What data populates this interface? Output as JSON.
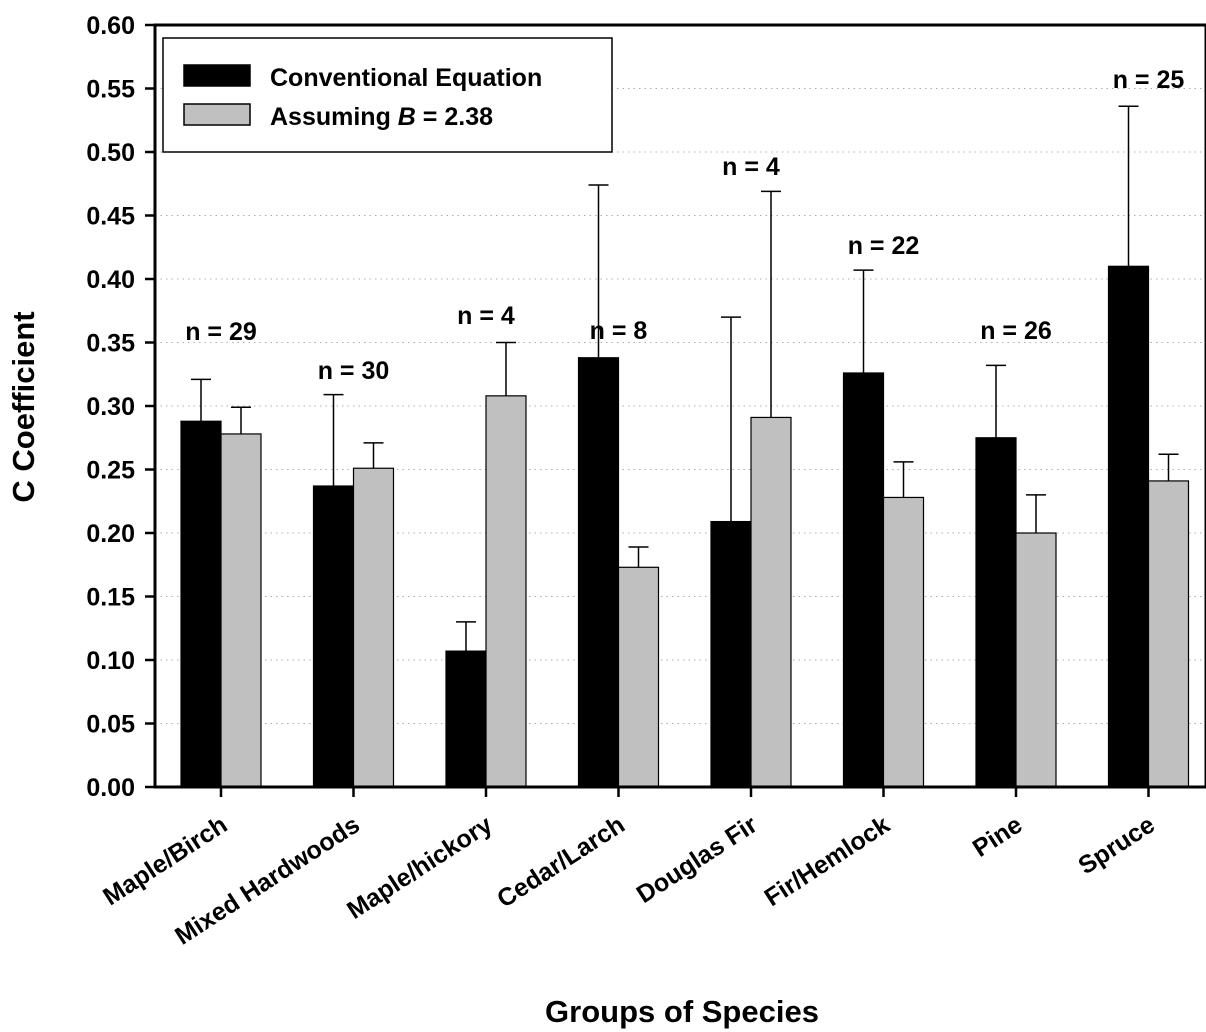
{
  "chart_data": {
    "type": "bar",
    "title": "",
    "xlabel": "Groups of Species",
    "ylabel": "C Coefficient",
    "ylim": [
      0,
      0.6
    ],
    "yticks": [
      "0.00",
      "0.05",
      "0.10",
      "0.15",
      "0.20",
      "0.25",
      "0.30",
      "0.35",
      "0.40",
      "0.45",
      "0.50",
      "0.55",
      "0.60"
    ],
    "grid": "dotted",
    "legend_position": "top-left",
    "categories": [
      "Maple/Birch",
      "Mixed Hardwoods",
      "Maple/hickory",
      "Cedar/Larch",
      "Douglas Fir",
      "Fir/Hemlock",
      "Pine",
      "Spruce"
    ],
    "sample_sizes": [
      "n = 29",
      "n = 30",
      "n = 4",
      "n = 8",
      "n = 4",
      "n = 22",
      "n = 26",
      "n = 25"
    ],
    "series": [
      {
        "name": "Conventional Equation",
        "color": "#000000",
        "values": [
          0.288,
          0.237,
          0.107,
          0.338,
          0.209,
          0.326,
          0.275,
          0.41
        ],
        "error_upper": [
          0.321,
          0.309,
          0.13,
          0.474,
          0.37,
          0.407,
          0.332,
          0.536
        ]
      },
      {
        "name": "Assuming B = 2.38",
        "color": "#c0c0c0",
        "values": [
          0.278,
          0.251,
          0.308,
          0.173,
          0.291,
          0.228,
          0.2,
          0.241
        ],
        "error_upper": [
          0.299,
          0.271,
          0.35,
          0.189,
          0.469,
          0.256,
          0.23,
          0.262
        ]
      }
    ],
    "legend": {
      "entry1": "Conventional Equation",
      "entry2_prefix": "Assuming ",
      "entry2_italic": "B",
      "entry2_suffix": " = 2.38"
    }
  }
}
